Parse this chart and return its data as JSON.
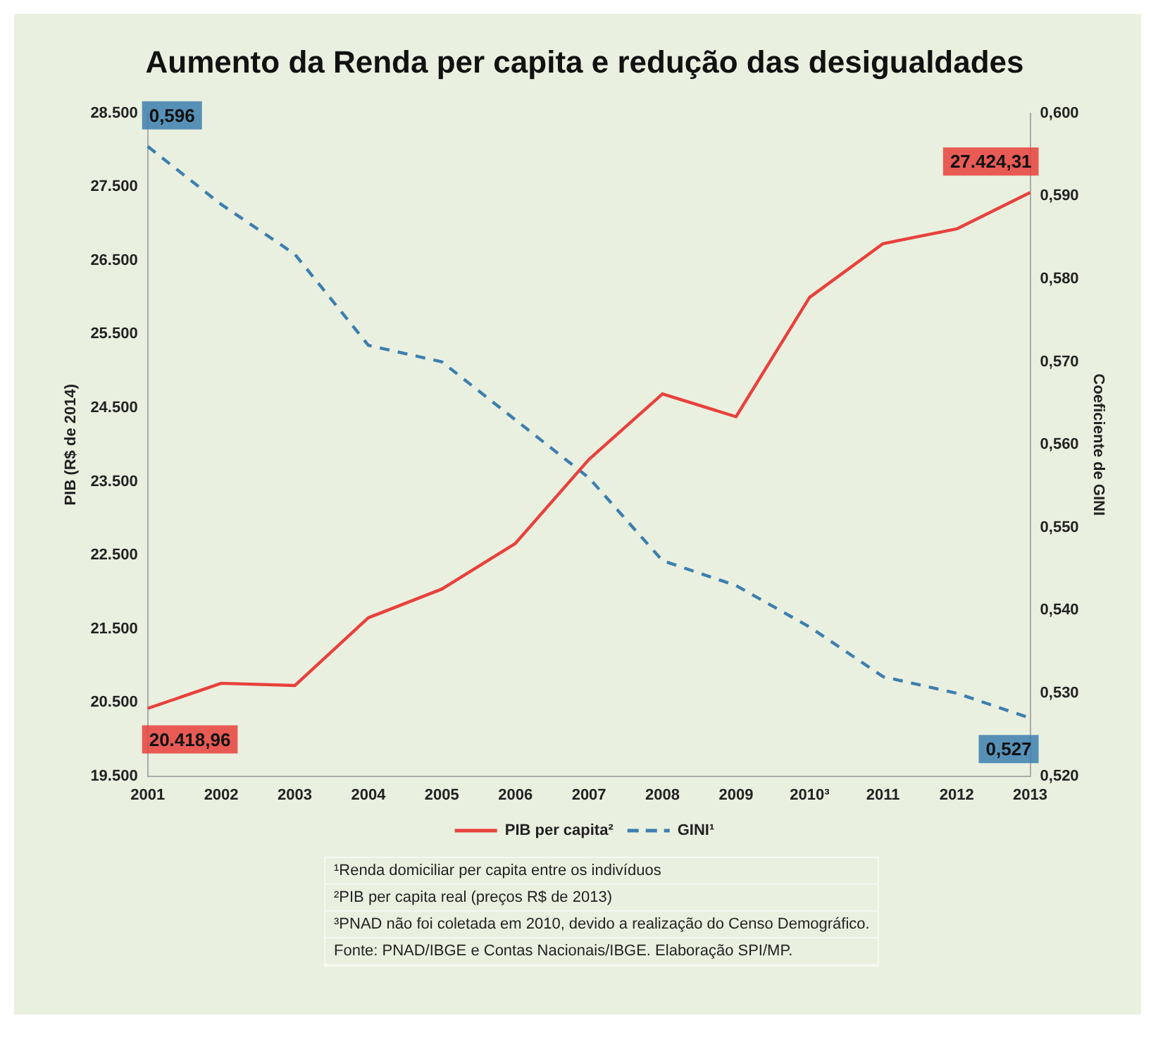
{
  "chart_data": {
    "type": "line",
    "title": "Aumento da Renda per capita e redução das desigualdades",
    "ylabel": "PIB (R$ de 2014)",
    "y2label": "Coeficiente de GINI",
    "categories": [
      "2001",
      "2002",
      "2003",
      "2004",
      "2005",
      "2006",
      "2007",
      "2008",
      "2009",
      "2010³",
      "2011",
      "2012",
      "2013"
    ],
    "series": [
      {
        "name": "PIB per capita²",
        "color": "#e8413c",
        "line_style": "solid",
        "values": [
          20418.96,
          20760,
          20730,
          21650,
          22040,
          22660,
          23800,
          24690,
          24380,
          26000,
          26730,
          26930,
          27424.31
        ],
        "value_labels": [
          "20.418,96",
          null,
          null,
          null,
          null,
          null,
          null,
          null,
          null,
          null,
          null,
          null,
          "27.424,31"
        ]
      },
      {
        "name": "GINI¹",
        "color": "#3d7fae",
        "axis": "y2",
        "line_style": "dashed",
        "values": [
          0.596,
          0.589,
          0.583,
          0.572,
          0.57,
          0.563,
          0.556,
          0.546,
          0.543,
          0.538,
          0.532,
          0.53,
          0.527
        ],
        "value_labels": [
          "0,596",
          null,
          null,
          null,
          null,
          null,
          null,
          null,
          null,
          null,
          null,
          null,
          "0,527"
        ]
      }
    ],
    "ylim": [
      19500,
      28500
    ],
    "yticks": [
      {
        "value": 19500,
        "label": "19.500"
      },
      {
        "value": 20500,
        "label": "20.500"
      },
      {
        "value": 21500,
        "label": "21.500"
      },
      {
        "value": 22500,
        "label": "22.500"
      },
      {
        "value": 23500,
        "label": "23.500"
      },
      {
        "value": 24500,
        "label": "24.500"
      },
      {
        "value": 25500,
        "label": "25.500"
      },
      {
        "value": 26500,
        "label": "26.500"
      },
      {
        "value": 27500,
        "label": "27.500"
      },
      {
        "value": 28500,
        "label": "28.500"
      }
    ],
    "y2lim": [
      0.52,
      0.6
    ],
    "y2ticks": [
      {
        "value": 0.52,
        "label": "0,520"
      },
      {
        "value": 0.53,
        "label": "0,530"
      },
      {
        "value": 0.54,
        "label": "0,540"
      },
      {
        "value": 0.55,
        "label": "0,550"
      },
      {
        "value": 0.56,
        "label": "0,560"
      },
      {
        "value": 0.57,
        "label": "0,570"
      },
      {
        "value": 0.58,
        "label": "0,580"
      },
      {
        "value": 0.59,
        "label": "0,590"
      },
      {
        "value": 0.6,
        "label": "0,600"
      }
    ],
    "grid": false,
    "legend": "bottom",
    "marker": "none",
    "annotations": [
      "¹Renda domiciliar per capita entre os indivíduos",
      "²PIB per capita real (preços R$ de 2013)",
      "³PNAD não foi coletada em 2010, devido a realização do Censo Demográfico.",
      "Fonte: PNAD/IBGE e Contas Nacionais/IBGE. Elaboração SPI/MP."
    ]
  }
}
